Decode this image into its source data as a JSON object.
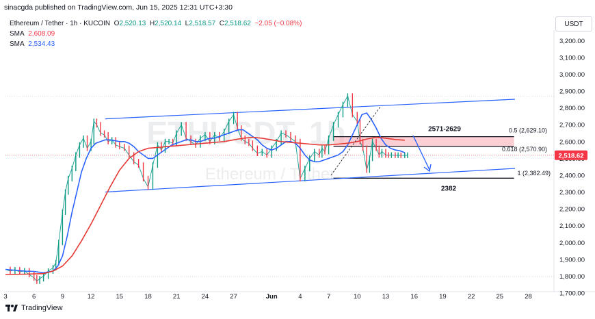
{
  "header": {
    "published": "sinacgda published on TradingView.com, Jun 15, 2025 12:31 UTC+3:30"
  },
  "legend": {
    "symbol": "Ethereum / Tether · 1h · KUCOIN",
    "o_label": "O",
    "o_value": "2,520.13",
    "h_label": "H",
    "h_value": "2,520.14",
    "l_label": "L",
    "l_value": "2,518.57",
    "c_label": "C",
    "c_value": "2,518.62",
    "change": "−2.05 (−0.08%)",
    "sma1_label": "SMA",
    "sma1_value": "2,608.09",
    "sma2_label": "SMA",
    "sma2_value": "2,534.43"
  },
  "currency": "USDT",
  "watermark": {
    "symbol": "ETHUSDT, 1h",
    "name": "Ethereum / Tether"
  },
  "footer": {
    "brand": "TradingView"
  },
  "chart_data": {
    "type": "line",
    "y_axis_ticks": [
      3200,
      3100,
      3000,
      2900,
      2800,
      2700,
      2600,
      2500,
      2400,
      2300,
      2200,
      2100,
      2000,
      1900,
      1800,
      1700
    ],
    "y_axis_labels": [
      "3,200.00",
      "3,100.00",
      "3,000.00",
      "2,900.00",
      "2,800.00",
      "2,700.00",
      "2,600.00",
      "2,500.00",
      "2,400.00",
      "2,300.00",
      "2,200.00",
      "2,100.00",
      "2,000.00",
      "1,900.00",
      "1,800.00",
      "1,700.00"
    ],
    "x_axis_labels": [
      "3",
      "6",
      "9",
      "12",
      "15",
      "18",
      "21",
      "24",
      "27",
      "Jun",
      "4",
      "7",
      "10",
      "13",
      "16",
      "19",
      "22",
      "25",
      "28"
    ],
    "ylim": [
      1700,
      3250
    ],
    "price_label": "2,518.62",
    "series": [
      {
        "kind": "price",
        "x": [
          3.0,
          3.5,
          4.0,
          4.5,
          5.0,
          5.5,
          6.0,
          6.3,
          6.6,
          7.0,
          7.5,
          8.0,
          8.3,
          8.6,
          9.0,
          9.3,
          9.6,
          10.0,
          10.4,
          10.8,
          11.2,
          11.6,
          12.0,
          12.3,
          12.6,
          13.0,
          13.4,
          13.8,
          14.2,
          14.6,
          15.0,
          15.5,
          16.0,
          16.5,
          17.0,
          17.5,
          18.0,
          18.5,
          19.0,
          19.4,
          19.8,
          20.2,
          20.6,
          21.0,
          21.5,
          22.0,
          22.5,
          23.0,
          23.5,
          24.0,
          24.5,
          25.0,
          25.5,
          26.0,
          26.5,
          27.0,
          27.4,
          27.8,
          28.2,
          28.6,
          29.0,
          29.5,
          30.0,
          30.5,
          31.0,
          31.5,
          32.0,
          32.5,
          33.0,
          33.5,
          34.0,
          34.5,
          35.0,
          35.5,
          36.0,
          36.3,
          36.6,
          37.0,
          37.5,
          38.0,
          38.5,
          39.0,
          39.5,
          40.0,
          40.3,
          40.6,
          41.0,
          41.3,
          41.6,
          42.0,
          42.3,
          42.6,
          43.0,
          43.3,
          43.6,
          44.0,
          44.3,
          44.6,
          45.0,
          45.3
        ],
        "values": [
          1840,
          1830,
          1838,
          1825,
          1832,
          1810,
          1790,
          1770,
          1785,
          1800,
          1830,
          1850,
          1880,
          2000,
          2180,
          2300,
          2380,
          2440,
          2520,
          2580,
          2620,
          2560,
          2600,
          2720,
          2700,
          2650,
          2640,
          2600,
          2610,
          2580,
          2570,
          2560,
          2520,
          2480,
          2460,
          2380,
          2330,
          2460,
          2580,
          2550,
          2600,
          2600,
          2590,
          2650,
          2700,
          2620,
          2600,
          2580,
          2620,
          2640,
          2600,
          2640,
          2620,
          2660,
          2720,
          2760,
          2680,
          2620,
          2600,
          2590,
          2560,
          2530,
          2540,
          2520,
          2560,
          2600,
          2650,
          2640,
          2620,
          2600,
          2380,
          2440,
          2500,
          2540,
          2520,
          2560,
          2540,
          2620,
          2700,
          2760,
          2820,
          2870,
          2760,
          2720,
          2600,
          2560,
          2430,
          2500,
          2600,
          2560,
          2520,
          2540,
          2520,
          2519,
          2520,
          2518,
          2519,
          2518,
          2518,
          2519
        ],
        "color": "#26a69a"
      },
      {
        "kind": "sma_fast",
        "x": [
          3.0,
          4.0,
          5.0,
          6.0,
          7.0,
          8.0,
          8.5,
          9.0,
          9.5,
          10.0,
          10.5,
          11.0,
          11.5,
          12.0,
          12.5,
          13.0,
          13.5,
          14.0,
          14.5,
          15.0,
          15.5,
          16.0,
          16.5,
          17.0,
          17.5,
          18.0,
          18.5,
          19.0,
          19.5,
          20.0,
          20.5,
          21.0,
          21.5,
          22.0,
          22.5,
          23.0,
          23.5,
          24.0,
          24.5,
          25.0,
          25.5,
          26.0,
          26.5,
          27.0,
          27.5,
          28.0,
          28.5,
          29.0,
          29.5,
          30.0,
          30.5,
          31.0,
          31.5,
          32.0,
          32.5,
          33.0,
          33.5,
          34.0,
          34.5,
          35.0,
          35.5,
          36.0,
          36.5,
          37.0,
          37.5,
          38.0,
          38.5,
          39.0,
          39.5,
          40.0,
          40.5,
          41.0,
          41.5,
          42.0,
          42.5,
          43.0,
          43.5,
          44.0,
          44.5,
          45.0
        ],
        "values": [
          1840,
          1835,
          1830,
          1828,
          1820,
          1830,
          1860,
          1920,
          2040,
          2180,
          2300,
          2420,
          2500,
          2560,
          2590,
          2600,
          2610,
          2610,
          2605,
          2600,
          2600,
          2590,
          2570,
          2540,
          2520,
          2500,
          2500,
          2520,
          2540,
          2560,
          2580,
          2590,
          2600,
          2610,
          2610,
          2600,
          2600,
          2610,
          2620,
          2620,
          2630,
          2640,
          2650,
          2660,
          2670,
          2670,
          2650,
          2630,
          2610,
          2580,
          2560,
          2550,
          2560,
          2580,
          2600,
          2600,
          2590,
          2560,
          2520,
          2490,
          2480,
          2480,
          2490,
          2500,
          2510,
          2520,
          2540,
          2580,
          2640,
          2700,
          2760,
          2770,
          2730,
          2680,
          2620,
          2580,
          2560,
          2550,
          2545,
          2534
        ],
        "color": "#2962ff",
        "name": "SMA",
        "label": "2,534.43"
      },
      {
        "kind": "sma_slow",
        "x": [
          3.0,
          5.0,
          7.0,
          8.0,
          9.0,
          10.0,
          11.0,
          12.0,
          13.0,
          14.0,
          15.0,
          16.0,
          17.0,
          18.0,
          19.0,
          20.0,
          21.0,
          22.0,
          23.0,
          24.0,
          25.0,
          26.0,
          27.0,
          28.0,
          29.0,
          30.0,
          31.0,
          32.0,
          33.0,
          34.0,
          35.0,
          36.0,
          37.0,
          38.0,
          39.0,
          40.0,
          41.0,
          42.0,
          43.0,
          44.0,
          45.0
        ],
        "values": [
          1810,
          1812,
          1815,
          1830,
          1860,
          1920,
          2010,
          2110,
          2220,
          2330,
          2430,
          2500,
          2540,
          2560,
          2565,
          2570,
          2575,
          2580,
          2585,
          2590,
          2595,
          2600,
          2610,
          2620,
          2625,
          2620,
          2610,
          2600,
          2595,
          2590,
          2585,
          2580,
          2580,
          2585,
          2590,
          2600,
          2615,
          2625,
          2620,
          2612,
          2608
        ],
        "color": "#e53935",
        "name": "SMA",
        "label": "2,608.09"
      }
    ],
    "channel": {
      "upper": [
        [
          13.5,
          2735
        ],
        [
          38.5,
          2855
        ]
      ],
      "lower": [
        [
          13.5,
          2300
        ],
        [
          38.5,
          2420
        ]
      ]
    },
    "resistance_zone": {
      "from": 2571,
      "to": 2629,
      "label": "2571-2629"
    },
    "fib_levels": [
      {
        "value": 2629.1,
        "label": "0.5 (2,629.10)"
      },
      {
        "value": 2570.9,
        "label": "0.618 (2,570.90)"
      },
      {
        "value": 2382.49,
        "label": "1 (2,382.49)"
      }
    ],
    "support": {
      "value": 2382,
      "label": "2382"
    }
  }
}
